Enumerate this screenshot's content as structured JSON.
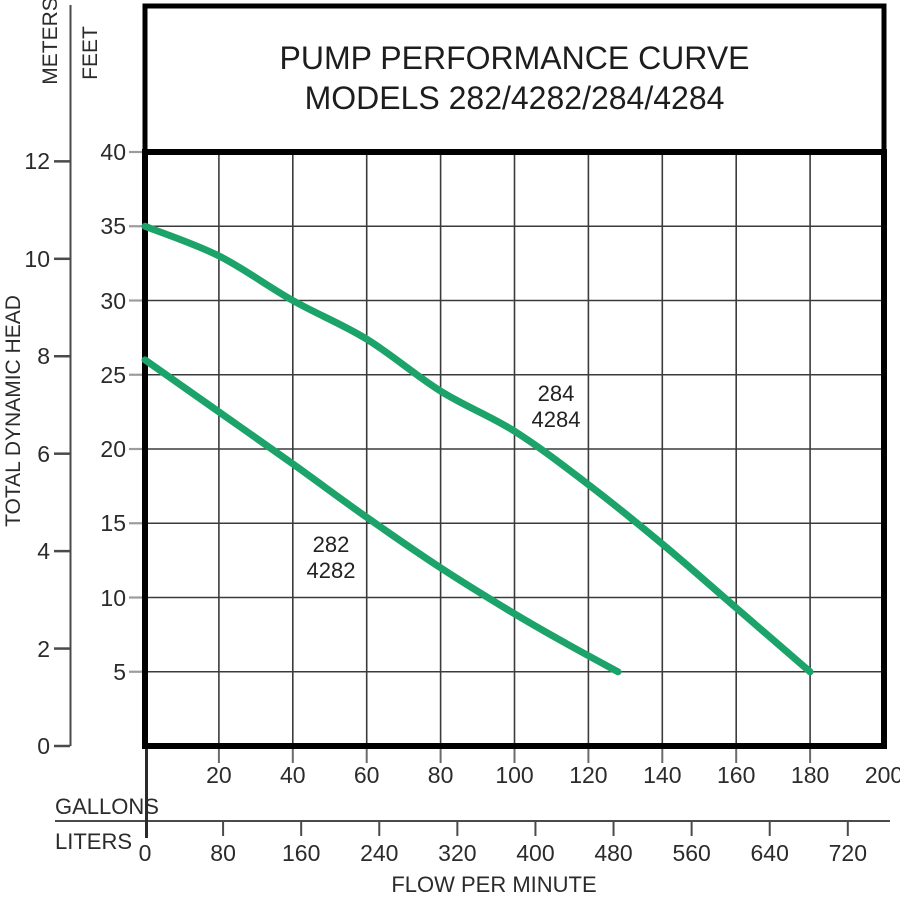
{
  "title": {
    "line1": "PUMP PERFORMANCE CURVE",
    "line2": "MODELS 282/4282/284/4284"
  },
  "axis_labels": {
    "y_outer": "METERS",
    "y_inner": "FEET",
    "y_title": "TOTAL DYNAMIC HEAD",
    "x_row1": "GALLONS",
    "x_row2": "LITERS",
    "x_title": "FLOW PER MINUTE"
  },
  "chart_data": {
    "type": "line",
    "title": "PUMP PERFORMANCE CURVE",
    "subtitle": "MODELS 282/4282/284/4284",
    "x_axis": {
      "label": "FLOW PER MINUTE",
      "scales": [
        {
          "name": "GALLONS",
          "range": [
            0,
            200
          ],
          "ticks": [
            20,
            40,
            60,
            80,
            100,
            120,
            140,
            160,
            180,
            200
          ]
        },
        {
          "name": "LITERS",
          "range": [
            0,
            757
          ],
          "ticks": [
            0,
            80,
            160,
            240,
            320,
            400,
            480,
            560,
            640,
            720
          ]
        }
      ]
    },
    "y_axis": {
      "label": "TOTAL DYNAMIC HEAD",
      "scales": [
        {
          "name": "FEET",
          "range": [
            0,
            40
          ],
          "ticks": [
            5,
            10,
            15,
            20,
            25,
            30,
            35,
            40
          ]
        },
        {
          "name": "METERS",
          "range": [
            0,
            12.2
          ],
          "ticks": [
            0,
            2,
            4,
            6,
            8,
            10,
            12
          ]
        }
      ]
    },
    "grid": {
      "x_step_gallons": 20,
      "y_step_feet": 5,
      "shown": true
    },
    "conversions": {
      "liters_per_gallon": 3.78541,
      "feet_per_meter": 3.28084
    },
    "series": [
      {
        "name": "282/4282",
        "label_lines": [
          "282",
          "4282"
        ],
        "x_unit": "gallons per minute",
        "y_unit": "feet",
        "points": [
          [
            0,
            26
          ],
          [
            20,
            22.5
          ],
          [
            40,
            19
          ],
          [
            60,
            15.4
          ],
          [
            80,
            12
          ],
          [
            100,
            8.9
          ],
          [
            114,
            6.9
          ],
          [
            128,
            5
          ]
        ]
      },
      {
        "name": "284/4284",
        "label_lines": [
          "284",
          "4284"
        ],
        "x_unit": "gallons per minute",
        "y_unit": "feet",
        "points": [
          [
            0,
            35
          ],
          [
            20,
            33
          ],
          [
            40,
            30
          ],
          [
            60,
            27.4
          ],
          [
            80,
            23.9
          ],
          [
            100,
            21.2
          ],
          [
            120,
            17.6
          ],
          [
            140,
            13.6
          ],
          [
            160,
            9.3
          ],
          [
            180,
            5
          ]
        ]
      }
    ],
    "colors": {
      "curve": "#1CA369",
      "grid": "#3b3b3b",
      "border": "#000000",
      "minor_tick": "#9c9c9c",
      "axis": "#4a4a4a",
      "text": "#2b2b2b"
    }
  }
}
